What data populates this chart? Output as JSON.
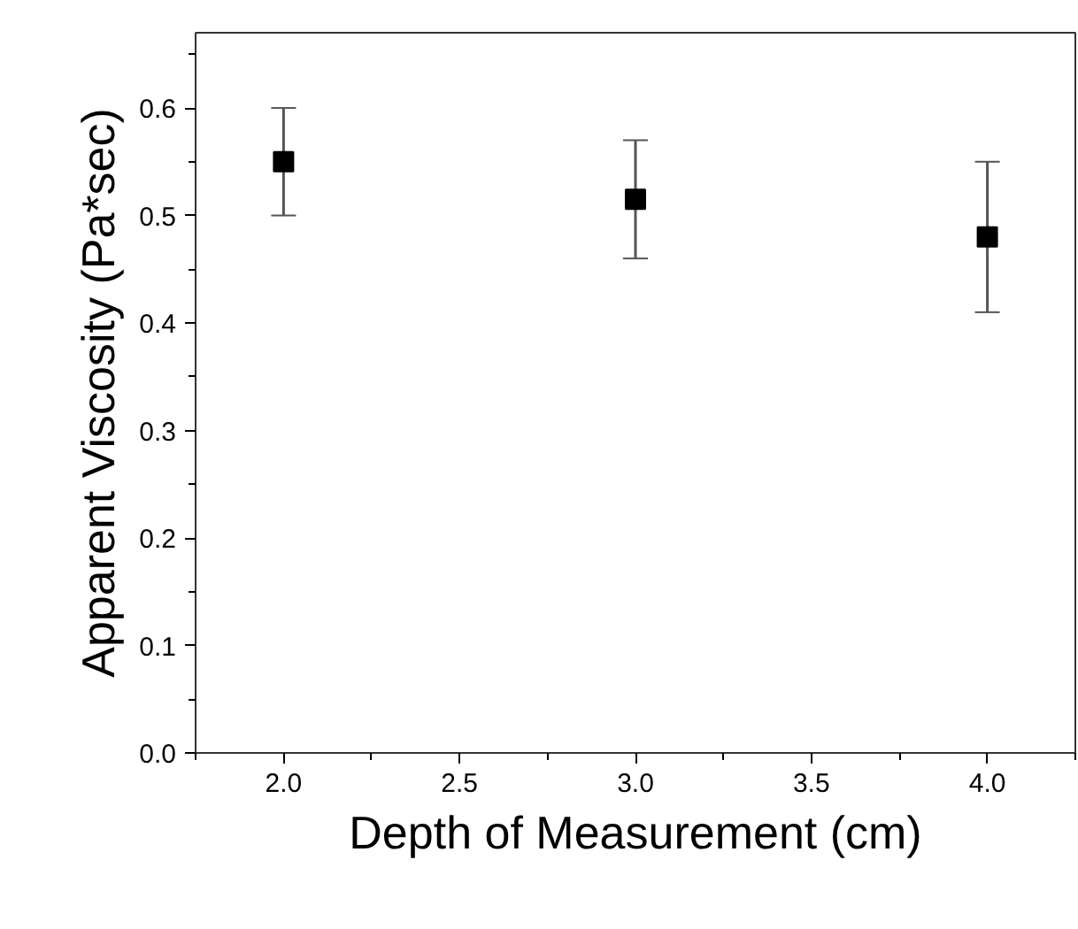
{
  "chart_data": {
    "type": "scatter",
    "xlabel": "Depth of Measurement (cm)",
    "ylabel": "Apparent Viscosity (Pa*sec)",
    "x": [
      2.0,
      3.0,
      4.0
    ],
    "series": [
      {
        "color": "#000000",
        "values": [
          0.55,
          0.515,
          0.48
        ],
        "errors": [
          [
            0.5,
            0.6
          ],
          [
            0.46,
            0.57
          ],
          [
            0.41,
            0.55
          ]
        ]
      }
    ],
    "marker": "square",
    "xlim": [
      1.75,
      4.25
    ],
    "ylim": [
      0,
      0.67
    ],
    "xticks": [
      {
        "value": 2,
        "label": "2.0"
      },
      2.5,
      {
        "value": 3,
        "label": "3.0"
      },
      3.5,
      {
        "value": 4,
        "label": "4.0"
      }
    ],
    "yticks": [
      {
        "value": 0,
        "label": "0.0"
      },
      0.1,
      0.2,
      0.3,
      0.4,
      0.5,
      0.6
    ],
    "grid": false
  }
}
